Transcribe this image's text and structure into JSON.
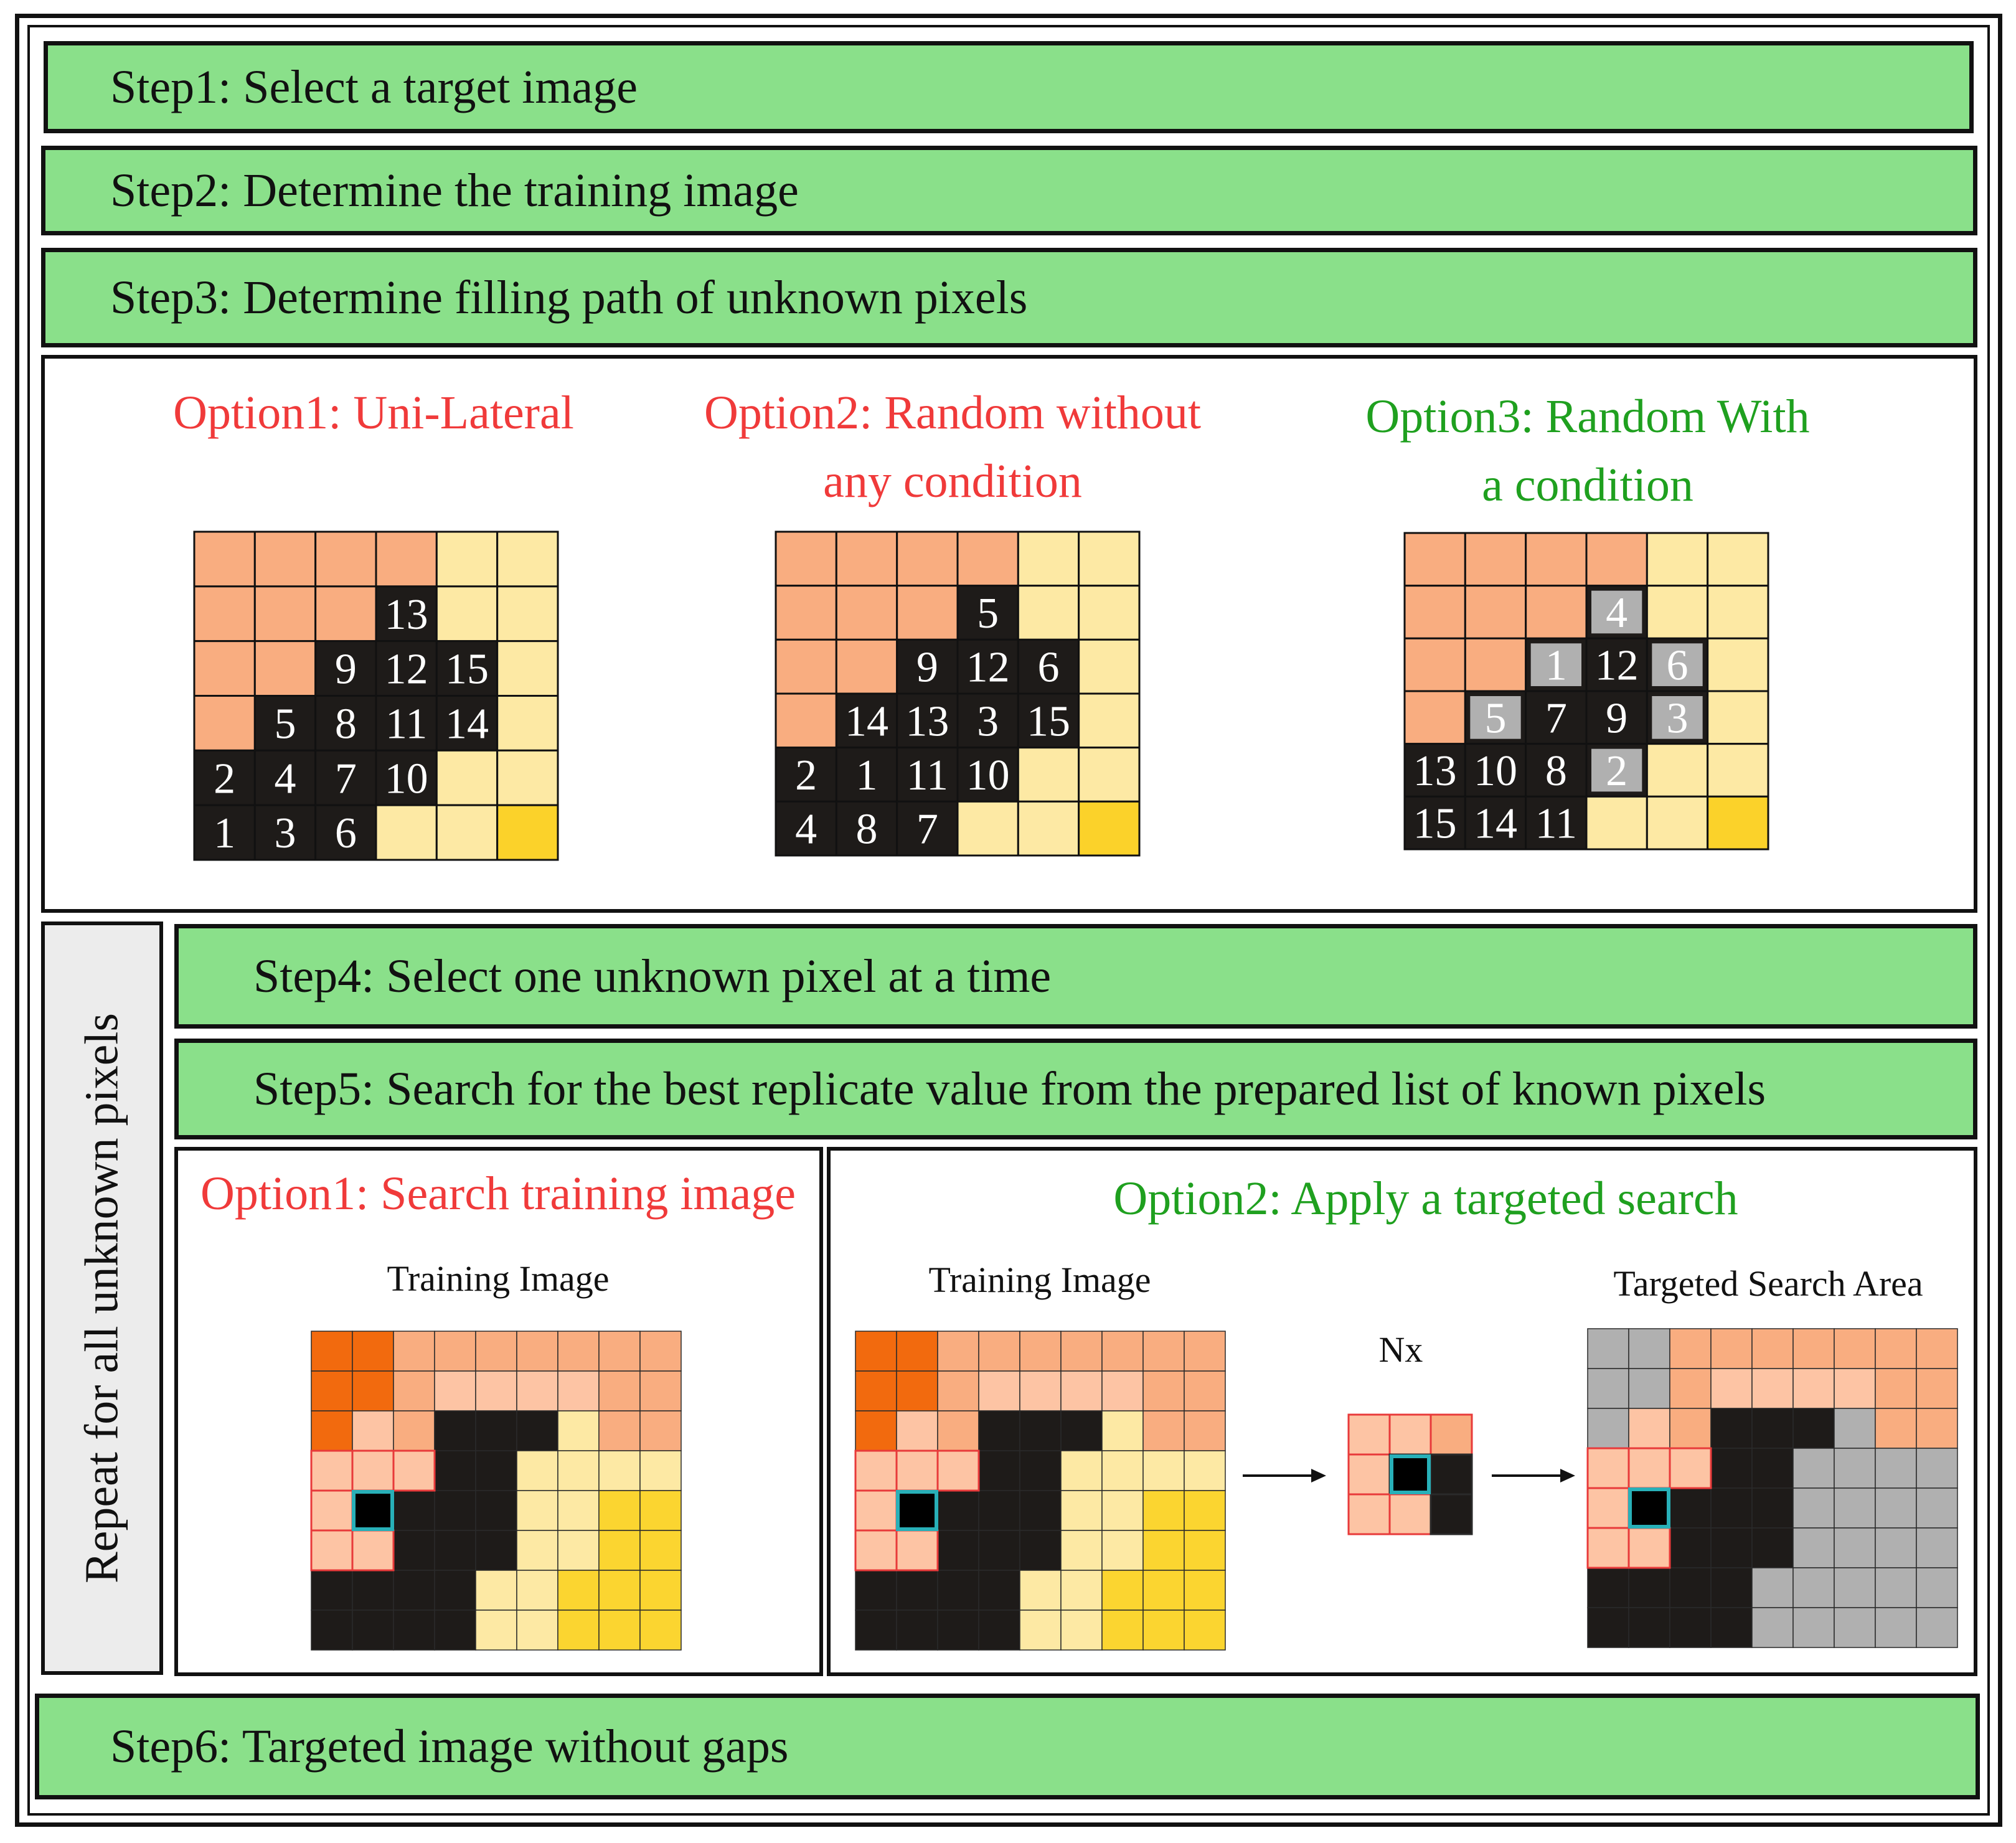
{
  "steps": {
    "step1": "Step1: Select a target image",
    "step2": "Step2: Determine the training image",
    "step3": "Step3: Determine filling path of unknown pixels",
    "step4": "Step4: Select one unknown pixel at a time",
    "step5": "Step5: Search for the best replicate value from the prepared list of known pixels",
    "step6": "Step6: Targeted image without gaps"
  },
  "repeat_label": "Repeat for all unknown pixels",
  "path_options": {
    "option1": {
      "title": "Option1: Uni-Lateral",
      "color": "#f03a3a",
      "rows": [
        [
          "o",
          "o",
          "o",
          "o",
          "y",
          "y"
        ],
        [
          "o",
          "o",
          "o",
          "13",
          "y",
          "y"
        ],
        [
          "o",
          "o",
          "9",
          "12",
          "15",
          "y"
        ],
        [
          "o",
          "5",
          "8",
          "11",
          "14",
          "y"
        ],
        [
          "2",
          "4",
          "7",
          "10",
          "y",
          "y"
        ],
        [
          "1",
          "3",
          "6",
          "y",
          "y",
          "g"
        ]
      ]
    },
    "option2": {
      "title_line1": "Option2: Random without",
      "title_line2": "any condition",
      "color": "#f03a3a",
      "rows": [
        [
          "o",
          "o",
          "o",
          "o",
          "y",
          "y"
        ],
        [
          "o",
          "o",
          "o",
          "5",
          "y",
          "y"
        ],
        [
          "o",
          "o",
          "9",
          "12",
          "6",
          "y"
        ],
        [
          "o",
          "14",
          "13",
          "3",
          "15",
          "y"
        ],
        [
          "2",
          "1",
          "11",
          "10",
          "y",
          "y"
        ],
        [
          "4",
          "8",
          "7",
          "y",
          "y",
          "g"
        ]
      ]
    },
    "option3": {
      "title_line1": "Option3: Random With",
      "title_line2": "a condition",
      "color": "#1fa01f",
      "rows": [
        [
          "o",
          "o",
          "o",
          "o",
          "y",
          "y"
        ],
        [
          "o",
          "o",
          "o",
          "~4",
          "y",
          "y"
        ],
        [
          "o",
          "o",
          "~1",
          "12",
          "~6",
          "y"
        ],
        [
          "o",
          "~5",
          "7",
          "9",
          "~3",
          "y"
        ],
        [
          "13",
          "10",
          "8",
          "~2",
          "y",
          "y"
        ],
        [
          "15",
          "14",
          "11",
          "y",
          "y",
          "g"
        ]
      ]
    }
  },
  "search_options": {
    "option1": {
      "title": "Option1: Search training image",
      "color": "#f03a3a",
      "label": "Training Image"
    },
    "option2": {
      "title": "Option2: Apply a targeted search",
      "color": "#1fa01f",
      "training_label": "Training Image",
      "nx_label": "Nx",
      "target_label": "Targeted Search Area"
    }
  },
  "colors": {
    "unknown": "#1e1b19",
    "known_orange": "#f9ad80",
    "known_yellow": "#fde9a4",
    "gold": "#fbd22a",
    "step_green": "#8ae08a",
    "gray": "#b0b0b0",
    "dark_orange": "#f26a0e",
    "light_peach": "#fdc4a4",
    "mid_gold": "#fbd530",
    "red_outline": "#e83a3a",
    "cyan_outline": "#28b0b8"
  },
  "grids": {
    "training": [
      "DDPPPPPPP",
      "DDPLLLLPP",
      "DLPKKKYPP",
      "LLLKKYYYY",
      "LLKKKYYGG",
      "LLKKKYYGG",
      "KKKKYYGGG",
      "KKKKYYGGG"
    ],
    "target_area": [
      "AAPPPPPPP",
      "AAPLLLLPP",
      "ALPKKKAPP",
      "LLLKKAAAA",
      "LLKKKAAAA",
      "LLKKKAAAA",
      "KKKKAAAAA",
      "KKKKAAAAA"
    ],
    "nx": [
      "LLP",
      "LKK",
      "LLK"
    ]
  }
}
